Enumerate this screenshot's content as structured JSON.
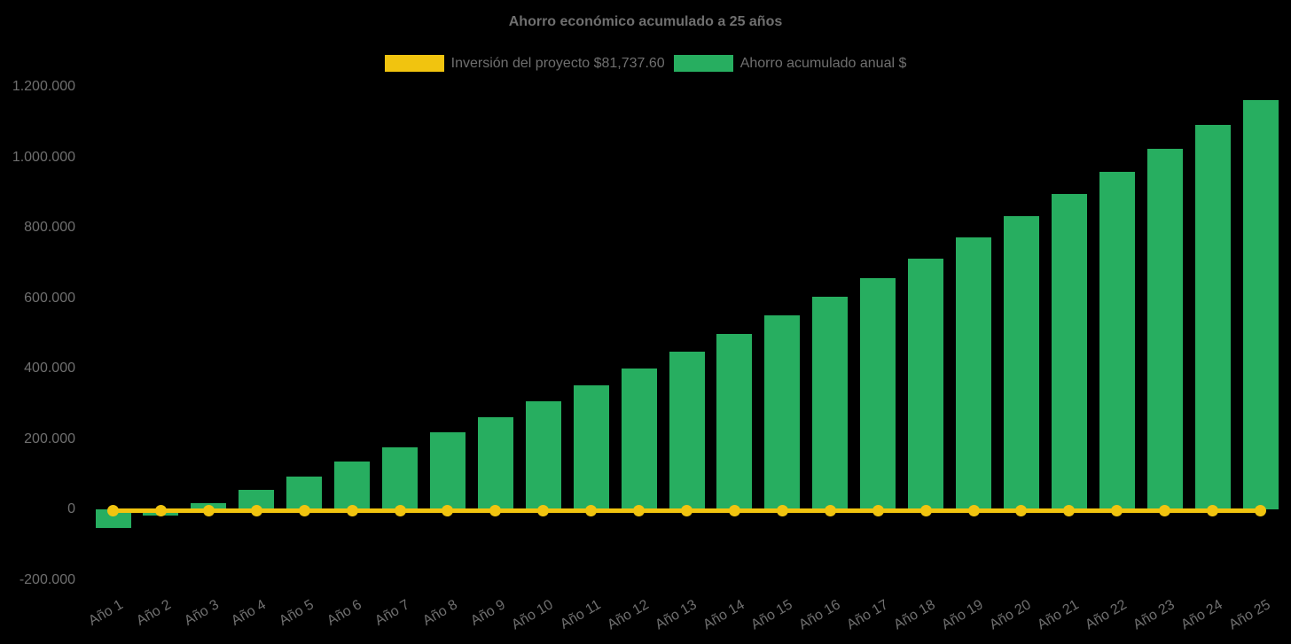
{
  "background_color": "#000000",
  "text_color": "#6f6f6f",
  "title": "Ahorro económico acumulado a 25 años",
  "legend": {
    "position": "top",
    "items": [
      {
        "label": "Inversión del proyecto $81,737.60",
        "color": "#F1C40F",
        "series_type": "line"
      },
      {
        "label": "Ahorro acumulado anual $",
        "color": "#27AE60",
        "series_type": "bar"
      }
    ]
  },
  "chart_data": {
    "type": "bar",
    "title": "Ahorro económico acumulado a 25 años",
    "categories": [
      "Año 1",
      "Año 2",
      "Año 3",
      "Año 4",
      "Año 5",
      "Año 6",
      "Año 7",
      "Año 8",
      "Año 9",
      "Año 10",
      "Año 11",
      "Año 12",
      "Año 13",
      "Año 14",
      "Año 15",
      "Año 16",
      "Año 17",
      "Año 18",
      "Año 19",
      "Año 20",
      "Año 21",
      "Año 22",
      "Año 23",
      "Año 24",
      "Año 25"
    ],
    "series": [
      {
        "name": "Inversión del proyecto $81,737.60",
        "type": "line",
        "color": "#F1C40F",
        "marker": "circle",
        "values": [
          0,
          0,
          0,
          0,
          0,
          0,
          0,
          0,
          0,
          0,
          0,
          0,
          0,
          0,
          0,
          0,
          0,
          0,
          0,
          0,
          0,
          0,
          0,
          0,
          0
        ]
      },
      {
        "name": "Ahorro acumulado anual $",
        "type": "bar",
        "color": "#27AE60",
        "values": [
          -53000,
          -17000,
          19000,
          57000,
          95000,
          137000,
          176000,
          219000,
          262000,
          308000,
          353000,
          400000,
          448000,
          498000,
          551000,
          604000,
          658000,
          713000,
          773000,
          833000,
          895000,
          959000,
          1024000,
          1092000,
          1162000
        ]
      }
    ],
    "xlabel": "",
    "ylabel": "",
    "ylim": [
      -200000,
      1200000
    ],
    "ytick_step": 200000,
    "yticks": [
      {
        "value": -200000,
        "label": "-200.000"
      },
      {
        "value": 0,
        "label": "0"
      },
      {
        "value": 200000,
        "label": "200.000"
      },
      {
        "value": 400000,
        "label": "400.000"
      },
      {
        "value": 600000,
        "label": "600.000"
      },
      {
        "value": 800000,
        "label": "800.000"
      },
      {
        "value": 1000000,
        "label": "1.000.000"
      },
      {
        "value": 1200000,
        "label": "1.200.000"
      }
    ],
    "x_tick_rotation_deg": -30,
    "grid": false,
    "legend_position": "top"
  }
}
